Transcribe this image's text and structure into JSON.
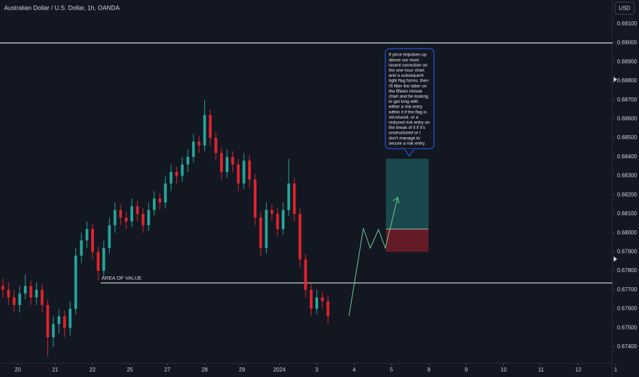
{
  "title": "Australian Dollar / U.S. Dollar, 1h, OANDA",
  "currency_button": "USD",
  "annotation": "AREA OF VALUE",
  "note_lines": [
    "If price impulses up",
    "above our most",
    "recent correction on",
    "the one hour chart",
    "and a subsequent",
    "tight flag forms, then",
    "I'll filter the latter on",
    "the fifteen minute",
    "chart and be looking",
    "to get long with",
    "either a risk entry",
    "within it if the flag is",
    "structured, or a",
    "reduced risk entry on",
    "the break of it if it's",
    "unstructured or I",
    "don't manage to",
    "secure a risk entry."
  ],
  "chart_data": {
    "type": "candlestick",
    "up_color": "#26a69a",
    "down_color": "#e0242c",
    "xlim": [
      -0.477,
      15.908
    ],
    "ylim": [
      0.67313,
      0.69226
    ],
    "xticks": [
      {
        "value": 0,
        "label": "20"
      },
      {
        "value": 1,
        "label": "21"
      },
      {
        "value": 2,
        "label": "22"
      },
      {
        "value": 3,
        "label": "25"
      },
      {
        "value": 4,
        "label": "27"
      },
      {
        "value": 5,
        "label": "28"
      },
      {
        "value": 6,
        "label": "29"
      },
      {
        "value": 7,
        "label": "2024"
      },
      {
        "value": 8,
        "label": "3"
      },
      {
        "value": 9,
        "label": "4"
      },
      {
        "value": 10,
        "label": "5"
      },
      {
        "value": 11,
        "label": "8"
      },
      {
        "value": 12,
        "label": "9"
      },
      {
        "value": 13,
        "label": "10"
      },
      {
        "value": 14,
        "label": "11"
      },
      {
        "value": 15,
        "label": "12"
      },
      {
        "value": 16,
        "label": "1"
      }
    ],
    "yticks": [
      {
        "value": 0.674,
        "label": "0.67400"
      },
      {
        "value": 0.675,
        "label": "0.67500"
      },
      {
        "value": 0.676,
        "label": "0.67600"
      },
      {
        "value": 0.677,
        "label": "0.67700"
      },
      {
        "value": 0.678,
        "label": "0.67800"
      },
      {
        "value": 0.679,
        "label": "0.67900"
      },
      {
        "value": 0.68,
        "label": "0.68000"
      },
      {
        "value": 0.681,
        "label": "0.68100"
      },
      {
        "value": 0.682,
        "label": "0.68200"
      },
      {
        "value": 0.683,
        "label": "0.68300"
      },
      {
        "value": 0.684,
        "label": "0.68400"
      },
      {
        "value": 0.685,
        "label": "0.68500"
      },
      {
        "value": 0.686,
        "label": "0.68600"
      },
      {
        "value": 0.687,
        "label": "0.68700"
      },
      {
        "value": 0.688,
        "label": "0.68800"
      },
      {
        "value": 0.689,
        "label": "0.68900"
      },
      {
        "value": 0.69,
        "label": "0.69000"
      },
      {
        "value": 0.691,
        "label": "0.69100"
      }
    ],
    "levels": [
      0.69,
      0.67736
    ],
    "position": {
      "target": 0.6839,
      "entry": 0.6802,
      "stop": 0.679
    },
    "x": [
      -0.4,
      -0.25,
      -0.1,
      0.05,
      0.2,
      0.35,
      0.5,
      0.65,
      0.8,
      0.95,
      1.1,
      1.25,
      1.4,
      1.55,
      1.7,
      1.85,
      2.0,
      2.15,
      2.3,
      2.45,
      2.6,
      2.75,
      2.9,
      3.05,
      3.2,
      3.35,
      3.5,
      3.65,
      3.8,
      3.95,
      4.1,
      4.25,
      4.4,
      4.55,
      4.7,
      4.85,
      5.0,
      5.15,
      5.3,
      5.45,
      5.6,
      5.75,
      5.9,
      6.05,
      6.2,
      6.35,
      6.5,
      6.65,
      6.8,
      6.95,
      7.1,
      7.25,
      7.4,
      7.55,
      7.7,
      7.85,
      8.0,
      8.15,
      8.3
    ],
    "open": [
      0.6772,
      0.677,
      0.6766,
      0.6762,
      0.6768,
      0.6772,
      0.6766,
      0.677,
      0.6762,
      0.6745,
      0.6752,
      0.6756,
      0.675,
      0.676,
      0.6788,
      0.6796,
      0.6802,
      0.679,
      0.678,
      0.6792,
      0.6804,
      0.6812,
      0.6808,
      0.6806,
      0.6814,
      0.681,
      0.6804,
      0.6812,
      0.6818,
      0.6816,
      0.6826,
      0.6832,
      0.683,
      0.6836,
      0.684,
      0.6848,
      0.6846,
      0.6862,
      0.685,
      0.6842,
      0.6832,
      0.684,
      0.6836,
      0.6826,
      0.6838,
      0.6828,
      0.6808,
      0.6792,
      0.6812,
      0.681,
      0.6802,
      0.6812,
      0.6826,
      0.681,
      0.6786,
      0.677,
      0.676,
      0.6766,
      0.6764
    ],
    "high": [
      0.6776,
      0.6774,
      0.677,
      0.6772,
      0.6778,
      0.6775,
      0.6774,
      0.6773,
      0.6765,
      0.6756,
      0.676,
      0.6759,
      0.6764,
      0.6792,
      0.68,
      0.6806,
      0.6805,
      0.6793,
      0.6796,
      0.6808,
      0.6816,
      0.6815,
      0.6811,
      0.6818,
      0.6817,
      0.6813,
      0.6816,
      0.6822,
      0.6821,
      0.683,
      0.6836,
      0.6835,
      0.684,
      0.6844,
      0.6852,
      0.6851,
      0.687,
      0.6865,
      0.6853,
      0.6845,
      0.6844,
      0.6843,
      0.6839,
      0.6842,
      0.6841,
      0.6831,
      0.6811,
      0.6816,
      0.6815,
      0.6813,
      0.6816,
      0.6839,
      0.6829,
      0.6813,
      0.6789,
      0.6773,
      0.677,
      0.6769,
      0.6767
    ],
    "low": [
      0.6766,
      0.6762,
      0.6758,
      0.6758,
      0.6765,
      0.6762,
      0.6762,
      0.6758,
      0.6735,
      0.674,
      0.6747,
      0.6745,
      0.6746,
      0.6757,
      0.6784,
      0.6792,
      0.6786,
      0.6775,
      0.6777,
      0.6789,
      0.68,
      0.6804,
      0.6802,
      0.6803,
      0.6806,
      0.68,
      0.6801,
      0.6809,
      0.6812,
      0.6813,
      0.6822,
      0.6826,
      0.6827,
      0.6832,
      0.6837,
      0.6842,
      0.6843,
      0.6846,
      0.6838,
      0.6828,
      0.6829,
      0.6832,
      0.6822,
      0.6823,
      0.6824,
      0.6804,
      0.6788,
      0.6789,
      0.6806,
      0.6798,
      0.6799,
      0.6809,
      0.6806,
      0.6782,
      0.6766,
      0.6756,
      0.6757,
      0.676,
      0.6752
    ],
    "close": [
      0.677,
      0.6766,
      0.6762,
      0.6768,
      0.6772,
      0.6766,
      0.677,
      0.6762,
      0.6745,
      0.6752,
      0.6756,
      0.675,
      0.676,
      0.6788,
      0.6796,
      0.6802,
      0.679,
      0.678,
      0.6792,
      0.6804,
      0.6812,
      0.6808,
      0.6806,
      0.6814,
      0.681,
      0.6804,
      0.6812,
      0.6818,
      0.6816,
      0.6826,
      0.6832,
      0.683,
      0.6836,
      0.684,
      0.6848,
      0.6846,
      0.6862,
      0.685,
      0.6842,
      0.6832,
      0.684,
      0.6836,
      0.6826,
      0.6838,
      0.6828,
      0.6808,
      0.6792,
      0.6812,
      0.681,
      0.6802,
      0.6812,
      0.6826,
      0.681,
      0.6786,
      0.677,
      0.676,
      0.6766,
      0.6764,
      0.6756
    ]
  }
}
